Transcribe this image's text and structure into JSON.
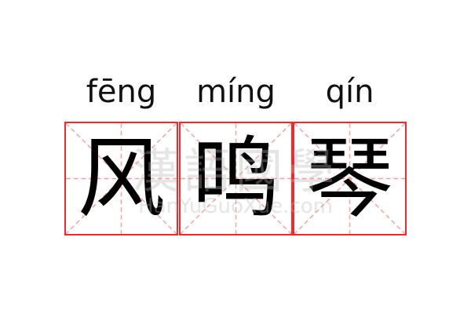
{
  "pinyin": [
    "fēng",
    "míng",
    "qín"
  ],
  "characters": [
    "风",
    "鸣",
    "琴"
  ],
  "watermark": {
    "chinese": "漢語國學",
    "latin": "HanYuGuoXue.com"
  },
  "colors": {
    "grid_border": "#f02a2a",
    "guide_lines": "#f5a0a0",
    "text": "#000000"
  }
}
